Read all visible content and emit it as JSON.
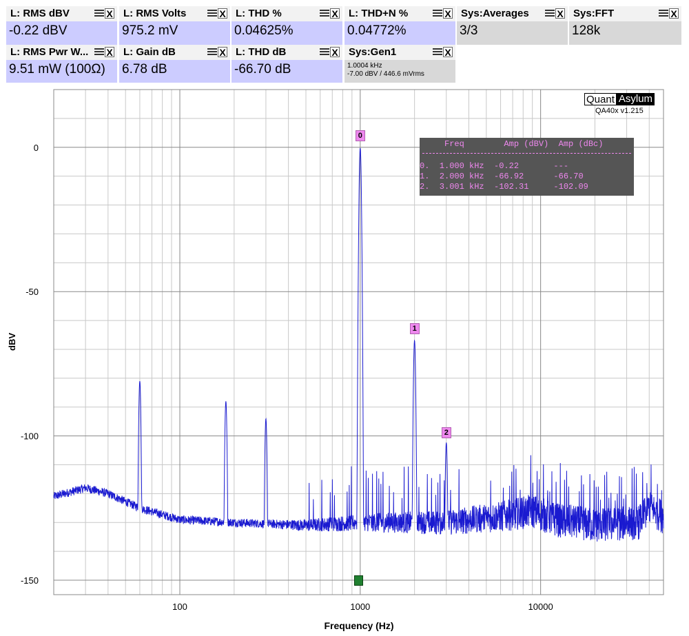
{
  "widgets": [
    {
      "title": "L: RMS dBV",
      "value": "-0.22 dBV"
    },
    {
      "title": "L: RMS Volts",
      "value": "975.2 mV"
    },
    {
      "title": "L: THD %",
      "value": "0.04625%"
    },
    {
      "title": "L: THD+N %",
      "value": "0.04772%"
    },
    {
      "title": "Sys:Averages",
      "value": "3/3"
    },
    {
      "title": "Sys:FFT",
      "value": "128k"
    },
    {
      "title": "L: RMS Pwr W...",
      "value": "9.51 mW (100Ω)"
    },
    {
      "title": "L: Gain dB",
      "value": "6.78 dB"
    },
    {
      "title": "L: THD dB",
      "value": "-66.70 dB"
    },
    {
      "title": "Sys:Gen1",
      "line1": "1.0004 kHz",
      "line2": "-7.00 dBV  / 446.6 mVrms"
    }
  ],
  "controls": {
    "menu_icon": "menu-lines-icon",
    "close_label": "X"
  },
  "brand": {
    "part1": "Quant",
    "part2": "Asylum",
    "version": "QA40x v1.215"
  },
  "marker_table": {
    "header": "     Freq        Amp (dBV)  Amp (dBc)",
    "rows": [
      "0.  1.000 kHz  -0.22       ---",
      "1.  2.000 kHz  -66.92      -66.70",
      "2.  3.001 kHz  -102.31     -102.09"
    ]
  },
  "markers": [
    {
      "label": "0",
      "freq": 1000,
      "amp": -0.22
    },
    {
      "label": "1",
      "freq": 2000,
      "amp": -66.92
    },
    {
      "label": "2",
      "freq": 3001,
      "amp": -102.31
    }
  ],
  "colors": {
    "trace": "#1a1ad0",
    "widget_value_bg": "#ccccff",
    "widget_gray_bg": "#d8d8d8",
    "marker": "#ee88ee",
    "table_bg": "#555555",
    "cursor": "#208030"
  },
  "chart_data": {
    "type": "line",
    "xlabel": "Frequency (Hz)",
    "ylabel": "dBV",
    "xscale": "log",
    "xlim": [
      20,
      48000
    ],
    "ylim": [
      -155,
      20
    ],
    "x_ticks": [
      {
        "value": 100,
        "label": "100"
      },
      {
        "value": 1000,
        "label": "1000"
      },
      {
        "value": 10000,
        "label": "10000"
      }
    ],
    "y_ticks": [
      {
        "value": 0,
        "label": "0"
      },
      {
        "value": -50,
        "label": "-50"
      },
      {
        "value": -100,
        "label": "-100"
      },
      {
        "value": -150,
        "label": "-150"
      }
    ],
    "grid": true,
    "noise_floor": [
      [
        20,
        -121
      ],
      [
        30,
        -118
      ],
      [
        40,
        -120
      ],
      [
        60,
        -125
      ],
      [
        100,
        -129
      ],
      [
        200,
        -130
      ],
      [
        500,
        -131
      ],
      [
        1000,
        -130
      ],
      [
        3000,
        -130
      ],
      [
        6000,
        -128
      ],
      [
        9000,
        -126
      ],
      [
        12000,
        -129
      ],
      [
        20000,
        -131
      ],
      [
        35000,
        -130
      ],
      [
        40000,
        -125
      ],
      [
        48000,
        -128
      ]
    ],
    "peaks": [
      {
        "freq": 60,
        "amp": -81
      },
      {
        "freq": 180,
        "amp": -88
      },
      {
        "freq": 300,
        "amp": -94
      },
      {
        "freq": 1000,
        "amp": -0.22
      },
      {
        "freq": 2000,
        "amp": -66.92
      },
      {
        "freq": 3001,
        "amp": -102.31
      }
    ]
  }
}
